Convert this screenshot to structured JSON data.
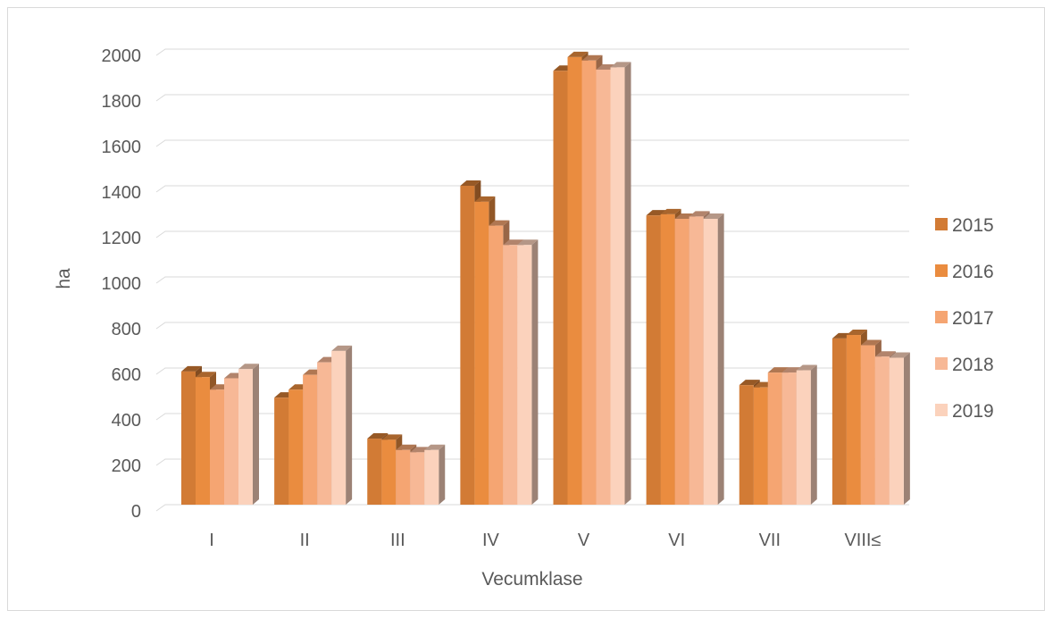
{
  "chart_data": {
    "type": "bar",
    "title": "",
    "xlabel": "Vecumklase",
    "ylabel": "ha",
    "ylim": [
      0,
      2000
    ],
    "yticks": [
      "0",
      "200",
      "400",
      "600",
      "800",
      "1000",
      "1200",
      "1400",
      "1600",
      "1800",
      "2000"
    ],
    "grid": true,
    "legend_position": "right",
    "categories": [
      "I",
      "II",
      "III",
      "IV",
      "V",
      "VI",
      "VII",
      "VIII≤"
    ],
    "series": [
      {
        "name": "2015",
        "color": "#d27b35",
        "values": [
          585,
          470,
          290,
          1400,
          1905,
          1270,
          525,
          730
        ]
      },
      {
        "name": "2016",
        "color": "#ea8c3f",
        "values": [
          560,
          505,
          285,
          1330,
          1965,
          1275,
          515,
          745
        ]
      },
      {
        "name": "2017",
        "color": "#f5a572",
        "values": [
          505,
          570,
          240,
          1225,
          1950,
          1255,
          580,
          700
        ]
      },
      {
        "name": "2018",
        "color": "#f7b896",
        "values": [
          555,
          625,
          230,
          1140,
          1910,
          1265,
          580,
          650
        ]
      },
      {
        "name": "2019",
        "color": "#fbd2bc",
        "values": [
          595,
          675,
          240,
          1140,
          1920,
          1255,
          590,
          645
        ]
      }
    ]
  }
}
